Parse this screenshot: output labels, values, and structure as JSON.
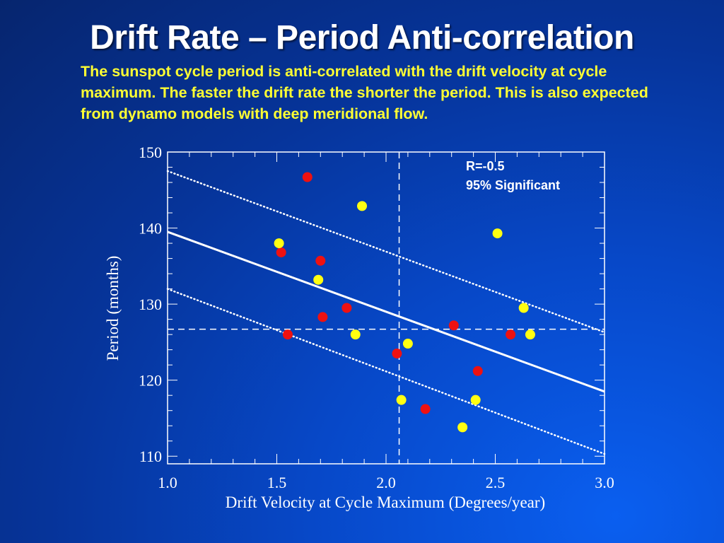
{
  "slide": {
    "title": "Drift Rate – Period Anti-correlation",
    "body": "The sunspot cycle period is anti-correlated with the drift velocity at cycle maximum. The faster the drift rate the shorter the period. This is also expected from dynamo models with deep meridional flow."
  },
  "colors": {
    "background": "#0748c8",
    "title": "#ffffff",
    "body_text": "#ffff33",
    "series_red": "#ee1111",
    "series_yellow": "#ffff11",
    "lines": "#ffffff"
  },
  "chart_data": {
    "type": "scatter",
    "title": "",
    "xlabel": "Drift Velocity at Cycle Maximum (Degrees/year)",
    "ylabel": "Period (months)",
    "xlim": [
      1.0,
      3.0
    ],
    "ylim": [
      109,
      150
    ],
    "x_ticks": [
      "1.0",
      "1.5",
      "2.0",
      "2.5",
      "3.0"
    ],
    "y_ticks": [
      "110",
      "120",
      "130",
      "140",
      "150"
    ],
    "x_tick_values": [
      1.0,
      1.5,
      2.0,
      2.5,
      3.0
    ],
    "y_tick_values": [
      110,
      120,
      130,
      140,
      150
    ],
    "grid": false,
    "annotations": [
      "R=-0.5",
      "95% Significant"
    ],
    "series": [
      {
        "color": "#ee1111",
        "points": [
          {
            "x": 1.64,
            "y": 146.7
          },
          {
            "x": 1.52,
            "y": 136.8
          },
          {
            "x": 1.7,
            "y": 135.7
          },
          {
            "x": 1.82,
            "y": 129.5
          },
          {
            "x": 1.71,
            "y": 128.3
          },
          {
            "x": 1.55,
            "y": 126.0
          },
          {
            "x": 2.05,
            "y": 123.5
          },
          {
            "x": 2.31,
            "y": 127.2
          },
          {
            "x": 2.57,
            "y": 126.0
          },
          {
            "x": 2.42,
            "y": 121.2
          },
          {
            "x": 2.18,
            "y": 116.2
          }
        ]
      },
      {
        "color": "#ffff11",
        "points": [
          {
            "x": 1.51,
            "y": 138.0
          },
          {
            "x": 1.89,
            "y": 142.9
          },
          {
            "x": 1.69,
            "y": 133.2
          },
          {
            "x": 1.86,
            "y": 126.0
          },
          {
            "x": 2.1,
            "y": 124.8
          },
          {
            "x": 2.07,
            "y": 117.4
          },
          {
            "x": 2.41,
            "y": 117.4
          },
          {
            "x": 2.35,
            "y": 113.8
          },
          {
            "x": 2.51,
            "y": 139.3
          },
          {
            "x": 2.63,
            "y": 129.5
          },
          {
            "x": 2.66,
            "y": 126.0
          }
        ]
      }
    ],
    "fit_line": {
      "x": [
        1.0,
        3.0
      ],
      "y": [
        139.5,
        118.5
      ]
    },
    "upper_bound": {
      "x": [
        1.0,
        3.0
      ],
      "y": [
        147.5,
        126.3
      ]
    },
    "lower_bound": {
      "x": [
        1.0,
        3.0
      ],
      "y": [
        132.0,
        110.3
      ]
    },
    "mean_x": 2.06,
    "mean_y": 126.7
  }
}
